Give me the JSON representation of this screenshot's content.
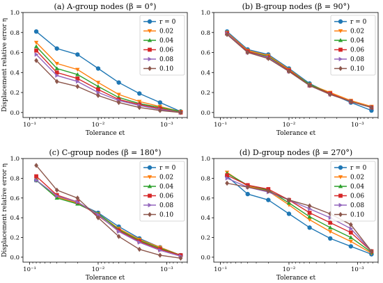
{
  "chart_data": [
    {
      "type": "line",
      "title": "(a) A-group nodes (β = 0°)",
      "xlabel": "Tolerance ϵt",
      "ylabel": "Displacement relative error η",
      "x_scale": "log-reversed",
      "xlim": [
        0.125,
        0.0005
      ],
      "ylim": [
        -0.05,
        1.0
      ],
      "x_ticks": [
        {
          "value": 0.1,
          "label": "10⁻¹"
        },
        {
          "value": 0.01,
          "label": "10⁻²"
        },
        {
          "value": 0.001,
          "label": "10⁻³"
        }
      ],
      "y_ticks": [
        0.0,
        0.2,
        0.4,
        0.6,
        0.8,
        1.0
      ],
      "legend_position": "top-right",
      "x": [
        0.08,
        0.04,
        0.02,
        0.01,
        0.005,
        0.0025,
        0.00125,
        0.000625
      ],
      "series": [
        {
          "name": "r = 0",
          "values": [
            0.81,
            0.64,
            0.58,
            0.44,
            0.3,
            0.19,
            0.1,
            0.01
          ]
        },
        {
          "name": "0.02",
          "values": [
            0.7,
            0.49,
            0.43,
            0.3,
            0.18,
            0.11,
            0.06,
            0.01
          ]
        },
        {
          "name": "0.04",
          "values": [
            0.66,
            0.44,
            0.38,
            0.26,
            0.15,
            0.09,
            0.05,
            0.01
          ]
        },
        {
          "name": "0.06",
          "values": [
            0.62,
            0.4,
            0.34,
            0.23,
            0.13,
            0.08,
            0.04,
            0.0
          ]
        },
        {
          "name": "0.08",
          "values": [
            0.58,
            0.37,
            0.31,
            0.2,
            0.12,
            0.07,
            0.03,
            0.0
          ]
        },
        {
          "name": "0.10",
          "values": [
            0.52,
            0.31,
            0.26,
            0.17,
            0.1,
            0.05,
            0.02,
            0.0
          ]
        }
      ]
    },
    {
      "type": "line",
      "title": "(b) B-group nodes (β = 90°)",
      "xlabel": "Tolerance ϵt",
      "ylabel": "",
      "x_scale": "log-reversed",
      "xlim": [
        0.125,
        0.0005
      ],
      "ylim": [
        -0.05,
        1.0
      ],
      "x_ticks": [
        {
          "value": 0.1,
          "label": "10⁻¹"
        },
        {
          "value": 0.01,
          "label": "10⁻²"
        },
        {
          "value": 0.001,
          "label": "10⁻³"
        }
      ],
      "y_ticks": [
        0.0,
        0.2,
        0.4,
        0.6,
        0.8,
        1.0
      ],
      "legend_position": "top-right",
      "x": [
        0.08,
        0.04,
        0.02,
        0.01,
        0.005,
        0.0025,
        0.00125,
        0.000625
      ],
      "series": [
        {
          "name": "r = 0",
          "values": [
            0.81,
            0.63,
            0.58,
            0.44,
            0.29,
            0.19,
            0.1,
            0.02
          ]
        },
        {
          "name": "0.02",
          "values": [
            0.8,
            0.62,
            0.57,
            0.43,
            0.28,
            0.2,
            0.12,
            0.06
          ]
        },
        {
          "name": "0.04",
          "values": [
            0.79,
            0.61,
            0.56,
            0.42,
            0.28,
            0.19,
            0.11,
            0.05
          ]
        },
        {
          "name": "0.06",
          "values": [
            0.79,
            0.61,
            0.55,
            0.42,
            0.27,
            0.19,
            0.11,
            0.05
          ]
        },
        {
          "name": "0.08",
          "values": [
            0.79,
            0.6,
            0.55,
            0.41,
            0.27,
            0.18,
            0.11,
            0.05
          ]
        },
        {
          "name": "0.10",
          "values": [
            0.78,
            0.6,
            0.54,
            0.41,
            0.27,
            0.18,
            0.11,
            0.05
          ]
        }
      ]
    },
    {
      "type": "line",
      "title": "(c) C-group nodes (β = 180°)",
      "xlabel": "Tolerance ϵt",
      "ylabel": "Displacement relative error η",
      "x_scale": "log-reversed",
      "xlim": [
        0.125,
        0.0005
      ],
      "ylim": [
        -0.05,
        1.0
      ],
      "x_ticks": [
        {
          "value": 0.1,
          "label": "10⁻¹"
        },
        {
          "value": 0.01,
          "label": "10⁻²"
        },
        {
          "value": 0.001,
          "label": "10⁻³"
        }
      ],
      "y_ticks": [
        0.0,
        0.2,
        0.4,
        0.6,
        0.8,
        1.0
      ],
      "legend_position": "top-right",
      "x": [
        0.08,
        0.04,
        0.02,
        0.01,
        0.005,
        0.0025,
        0.00125,
        0.000625
      ],
      "series": [
        {
          "name": "r = 0",
          "values": [
            0.78,
            0.62,
            0.55,
            0.45,
            0.31,
            0.19,
            0.1,
            0.02
          ]
        },
        {
          "name": "0.02",
          "values": [
            0.78,
            0.61,
            0.55,
            0.44,
            0.29,
            0.18,
            0.1,
            0.02
          ]
        },
        {
          "name": "0.04",
          "values": [
            0.78,
            0.6,
            0.54,
            0.44,
            0.28,
            0.17,
            0.09,
            0.02
          ]
        },
        {
          "name": "0.06",
          "values": [
            0.82,
            0.63,
            0.56,
            0.42,
            0.27,
            0.16,
            0.08,
            0.02
          ]
        },
        {
          "name": "0.08",
          "values": [
            0.78,
            0.62,
            0.56,
            0.43,
            0.26,
            0.15,
            0.07,
            0.01
          ]
        },
        {
          "name": "0.10",
          "values": [
            0.93,
            0.68,
            0.6,
            0.4,
            0.21,
            0.08,
            0.02,
            -0.01
          ]
        }
      ]
    },
    {
      "type": "line",
      "title": "(d) D-group nodes (β = 270°)",
      "xlabel": "Tolerance ϵt",
      "ylabel": "",
      "x_scale": "log-reversed",
      "xlim": [
        0.125,
        0.0005
      ],
      "ylim": [
        -0.05,
        1.0
      ],
      "x_ticks": [
        {
          "value": 0.1,
          "label": "10⁻¹"
        },
        {
          "value": 0.01,
          "label": "10⁻²"
        },
        {
          "value": 0.001,
          "label": "10⁻³"
        }
      ],
      "y_ticks": [
        0.0,
        0.2,
        0.4,
        0.6,
        0.8,
        1.0
      ],
      "legend_position": "top-right",
      "x": [
        0.08,
        0.04,
        0.02,
        0.01,
        0.005,
        0.0025,
        0.00125,
        0.000625
      ],
      "series": [
        {
          "name": "r = 0",
          "values": [
            0.82,
            0.64,
            0.58,
            0.44,
            0.3,
            0.19,
            0.11,
            0.03
          ]
        },
        {
          "name": "0.02",
          "values": [
            0.86,
            0.72,
            0.67,
            0.53,
            0.38,
            0.26,
            0.16,
            0.04
          ]
        },
        {
          "name": "0.04",
          "values": [
            0.85,
            0.73,
            0.68,
            0.55,
            0.41,
            0.3,
            0.2,
            0.05
          ]
        },
        {
          "name": "0.06",
          "values": [
            0.83,
            0.73,
            0.69,
            0.58,
            0.45,
            0.35,
            0.25,
            0.06
          ]
        },
        {
          "name": "0.08",
          "values": [
            0.8,
            0.71,
            0.66,
            0.58,
            0.49,
            0.4,
            0.29,
            0.06
          ]
        },
        {
          "name": "0.10",
          "values": [
            0.75,
            0.71,
            0.67,
            0.58,
            0.52,
            0.44,
            0.33,
            0.06
          ]
        }
      ]
    }
  ],
  "style": {
    "series_colors": [
      "#1f77b4",
      "#ff7f0e",
      "#2ca02c",
      "#d62728",
      "#9467bd",
      "#8c564b"
    ],
    "series_markers": [
      "circle",
      "triangle-down",
      "triangle-up",
      "square",
      "triangle-right",
      "diamond"
    ]
  }
}
